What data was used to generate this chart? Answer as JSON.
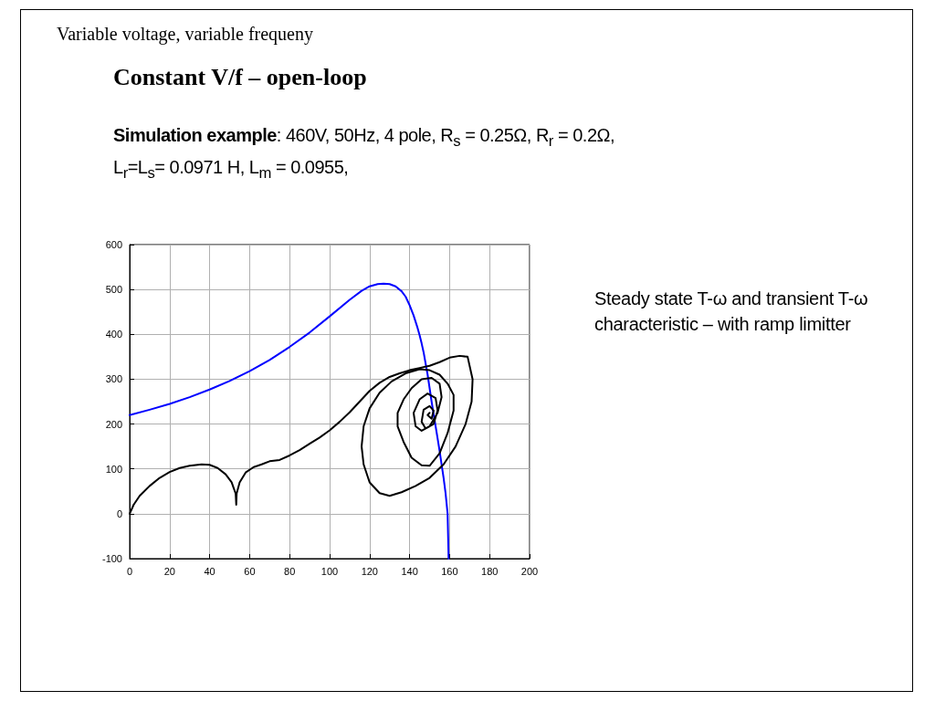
{
  "chart_data": {
    "type": "line",
    "title": "Variable voltage, variable frequeny",
    "subtitle": "Constant V/f – open-loop",
    "annotations": [
      "Simulation example",
      ": 460V, 50Hz, 4 pole, R$_{s}$ = 0.25Ω, R$_{r}$ = 0.2Ω, L$_{r}$=L$_{s}$= 0.0971 H, L$_{m}$ = 0.0955,",
      "Steady state T-ω and transient T-ω characteristic – with ramp limitter"
    ],
    "series": [
      {
        "color": "#0000ff",
        "x": [
          0,
          10,
          20,
          30,
          40,
          50,
          60,
          70,
          80,
          90,
          100,
          110,
          116,
          120,
          124,
          127,
          130,
          133,
          136,
          138,
          140,
          142,
          144,
          145,
          146,
          147,
          148,
          149,
          150,
          151,
          152,
          153,
          154,
          155,
          156,
          157,
          158,
          159,
          159.5
        ],
        "values": [
          220,
          232,
          245,
          260,
          277,
          296,
          318,
          343,
          372,
          404,
          440,
          477,
          497,
          507,
          512,
          513,
          512,
          507,
          496,
          484,
          465,
          442,
          414,
          398,
          380,
          360,
          335,
          310,
          280,
          250,
          222,
          195,
          168,
          140,
          110,
          80,
          45,
          0,
          -100
        ]
      },
      {
        "color": "#000000",
        "x": [
          0,
          2,
          5,
          10,
          15,
          20,
          25,
          30,
          36,
          40,
          44,
          48,
          51,
          53,
          53.3,
          53.5,
          55,
          58,
          62,
          66,
          70,
          75,
          80,
          85,
          90,
          95,
          100,
          105,
          110,
          115,
          120,
          125,
          130,
          135,
          140,
          145,
          150,
          155,
          160,
          165,
          169,
          171.5,
          171,
          168,
          163,
          157,
          150,
          143,
          136,
          130,
          125,
          120,
          117,
          116,
          117,
          120,
          125,
          131,
          138,
          145,
          150,
          155,
          159,
          162,
          162,
          159,
          155,
          150,
          146,
          141,
          137,
          134,
          134,
          137,
          141,
          146,
          151,
          155,
          156,
          154,
          150,
          146,
          143,
          142,
          145,
          149,
          153,
          154,
          152,
          148,
          146,
          147,
          150,
          152,
          151,
          149,
          150
        ],
        "values": [
          0,
          20,
          40,
          62,
          80,
          93,
          102,
          107,
          110,
          109,
          102,
          88,
          70,
          45,
          20,
          45,
          70,
          92,
          104,
          110,
          117,
          120,
          130,
          142,
          156,
          170,
          186,
          205,
          226,
          250,
          274,
          292,
          305,
          313,
          320,
          325,
          330,
          338,
          348,
          352,
          350,
          300,
          250,
          200,
          150,
          110,
          80,
          62,
          48,
          40,
          46,
          70,
          110,
          150,
          195,
          235,
          270,
          295,
          313,
          322,
          320,
          310,
          290,
          265,
          230,
          180,
          135,
          107,
          108,
          125,
          160,
          195,
          225,
          255,
          280,
          300,
          303,
          290,
          260,
          225,
          195,
          185,
          195,
          225,
          255,
          268,
          258,
          230,
          200,
          190,
          205,
          232,
          240,
          230,
          212,
          220,
          225
        ]
      }
    ],
    "xlim": [
      0,
      200
    ],
    "xticks": [
      0,
      20,
      40,
      60,
      80,
      100,
      120,
      140,
      160,
      180,
      200
    ],
    "ylim": [
      -100,
      600
    ],
    "yticks": [
      -100,
      0,
      100,
      200,
      300,
      400,
      500,
      600
    ],
    "grid": true,
    "marker": "none",
    "line_style": "solid"
  }
}
